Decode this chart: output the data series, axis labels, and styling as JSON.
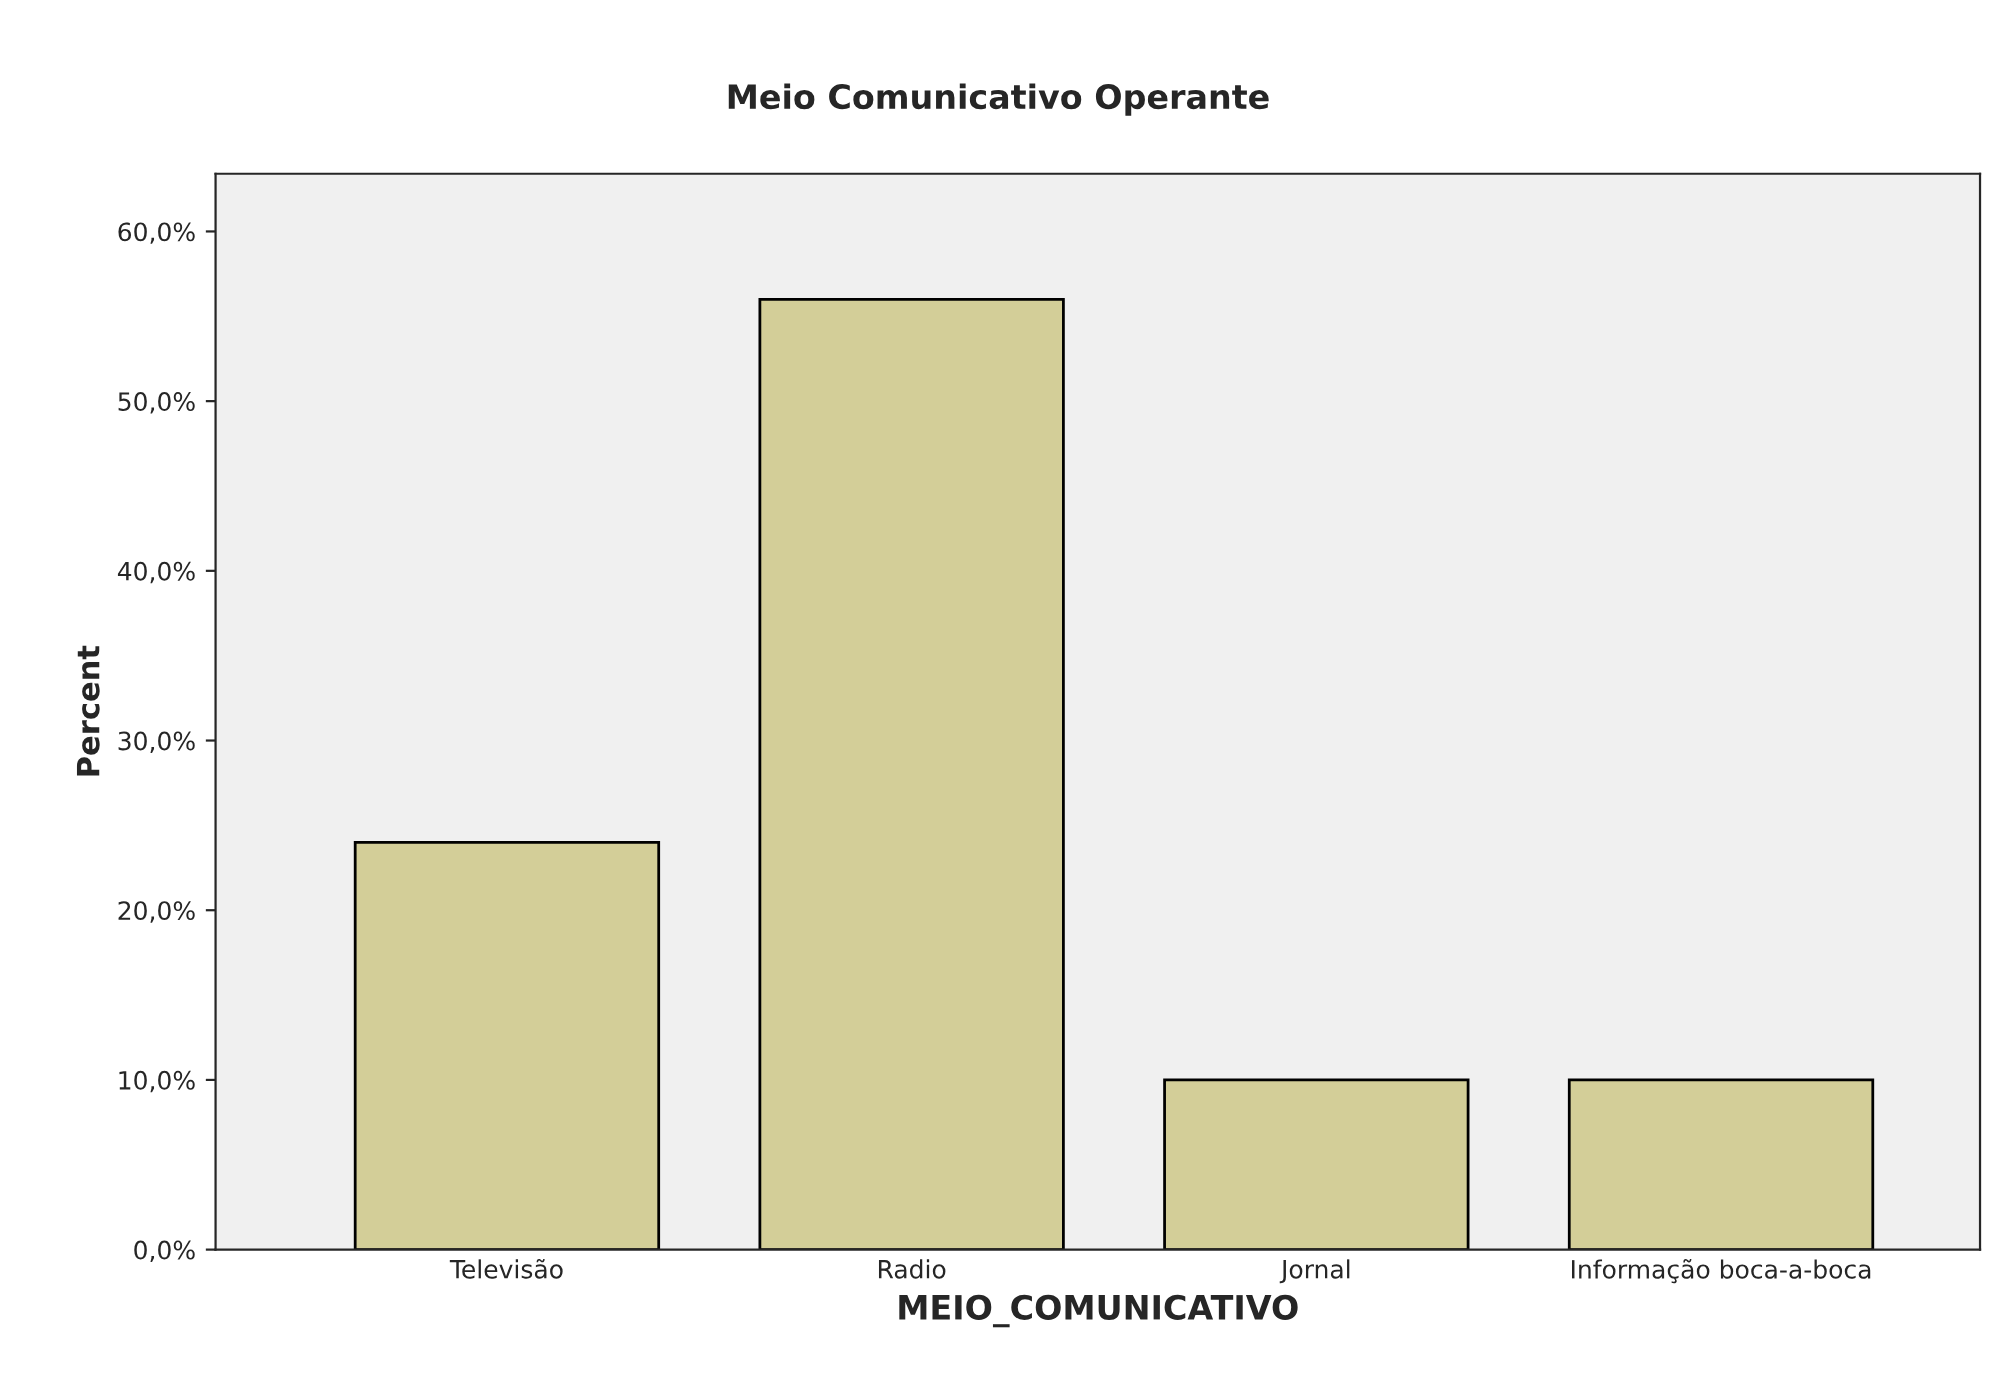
{
  "chart_data": {
    "type": "bar",
    "title": "Meio Comunicativo Operante",
    "xlabel": "MEIO_COMUNICATIVO",
    "ylabel": "Percent",
    "categories": [
      "Televisão",
      "Radio",
      "Jornal",
      "Informação boca-a-boca"
    ],
    "values": [
      24,
      56,
      10,
      10
    ],
    "color": "#d3ce98",
    "ylim": [
      0,
      63.4
    ],
    "yticks": [
      {
        "value": 0,
        "label": "0,0%"
      },
      {
        "value": 10,
        "label": "10,0%"
      },
      {
        "value": 20,
        "label": "20,0%"
      },
      {
        "value": 30,
        "label": "30,0%"
      },
      {
        "value": 40,
        "label": "40,0%"
      },
      {
        "value": 50,
        "label": "50,0%"
      },
      {
        "value": 60,
        "label": "60,0%"
      }
    ],
    "grid": false,
    "legend": false
  }
}
